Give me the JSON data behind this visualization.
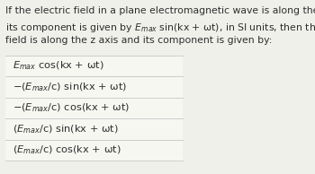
{
  "background_color": "#f0f0eb",
  "question_text_lines": [
    "If the electric field in a plane electromagnetic wave is along the y axis and",
    "its component is given by $E_{max}$ sin(kx + ωt), in SI units, then the magnetic",
    "field is along the z axis and its component is given by:"
  ],
  "options": [
    "$E_{max}$ cos(kx + ωt)",
    "−($E_{max}$/c) sin(kx + ωt)",
    "−($E_{max}$/c) cos(kx + ωt)",
    "($E_{max}$/c) sin(kx + ωt)",
    "($E_{max}$/c) cos(kx + ωt)"
  ],
  "text_color": "#2d2d2d",
  "option_bg": "#f7f7f2",
  "divider_color": "#cccccc",
  "question_fontsize": 7.8,
  "option_fontsize": 8.2
}
